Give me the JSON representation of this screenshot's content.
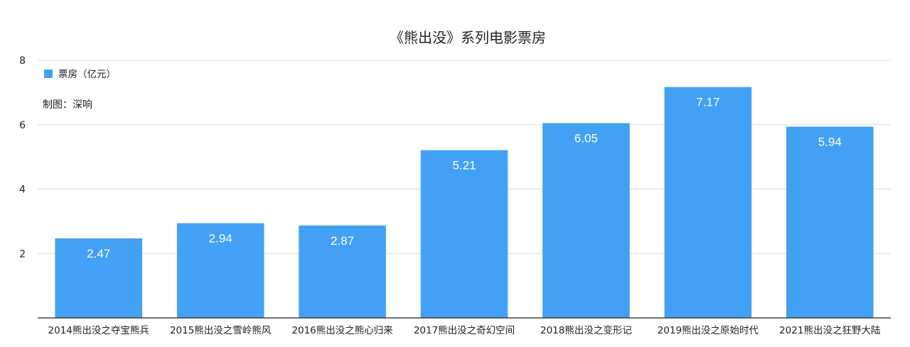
{
  "chart_data": {
    "type": "bar",
    "title": "《熊出没》系列电影票房",
    "xlabel": "",
    "ylabel": "",
    "categories": [
      "2014熊出没之夺宝熊兵",
      "2015熊出没之雪岭熊风",
      "2016熊出没之熊心归来",
      "2017熊出没之奇幻空间",
      "2018熊出没之变形记",
      "2019熊出没之原始时代",
      "2021熊出没之狂野大陆"
    ],
    "series": [
      {
        "name": "票房（亿元）",
        "values": [
          2.47,
          2.94,
          2.87,
          5.21,
          6.05,
          7.17,
          5.94
        ]
      }
    ],
    "ylim": [
      0,
      8
    ],
    "yticks": [
      2,
      4,
      6,
      8
    ],
    "grid": true,
    "legend_position": "top-left",
    "bar_color": "#42a1f5",
    "note": "制图：深响"
  }
}
